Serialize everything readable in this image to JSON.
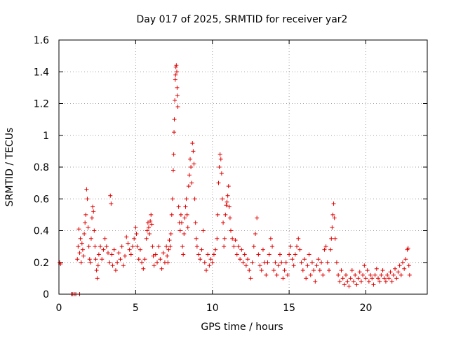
{
  "chart_data": {
    "type": "scatter",
    "title": "Day 017 of 2025, SRMTID for receiver yar2",
    "xlabel": "GPS time / hours",
    "ylabel": "SRMTID / TECUs",
    "xlim": [
      0,
      24
    ],
    "ylim": [
      0,
      1.6
    ],
    "xticks": [
      0,
      5,
      10,
      15,
      20
    ],
    "xtick_labels": [
      "0",
      "5",
      "10",
      "15",
      "20"
    ],
    "yticks": [
      0,
      0.2,
      0.4,
      0.6,
      0.8,
      1.0,
      1.2,
      1.4,
      1.6
    ],
    "ytick_labels": [
      "0",
      "0.2",
      "0.4",
      "0.6",
      "0.8",
      "1",
      "1.2",
      "1.4",
      "1.6"
    ],
    "grid": true,
    "marker": "+",
    "color": "#e00000",
    "series": [
      {
        "name": "yar2",
        "points": [
          [
            0.05,
            0.2
          ],
          [
            0.1,
            0.19
          ],
          [
            0.8,
            0.0
          ],
          [
            0.9,
            0.0
          ],
          [
            1.0,
            0.0
          ],
          [
            1.1,
            0.0
          ],
          [
            1.35,
            0.0
          ],
          [
            1.2,
            0.22
          ],
          [
            1.25,
            0.3
          ],
          [
            1.3,
            0.41
          ],
          [
            1.35,
            0.26
          ],
          [
            1.4,
            0.35
          ],
          [
            1.45,
            0.2
          ],
          [
            1.5,
            0.32
          ],
          [
            1.55,
            0.28
          ],
          [
            1.6,
            0.24
          ],
          [
            1.65,
            0.38
          ],
          [
            1.7,
            0.45
          ],
          [
            1.75,
            0.5
          ],
          [
            1.8,
            0.66
          ],
          [
            1.85,
            0.6
          ],
          [
            1.9,
            0.42
          ],
          [
            1.95,
            0.3
          ],
          [
            2.0,
            0.22
          ],
          [
            2.05,
            0.2
          ],
          [
            2.1,
            0.35
          ],
          [
            2.15,
            0.48
          ],
          [
            2.2,
            0.55
          ],
          [
            2.25,
            0.52
          ],
          [
            2.3,
            0.4
          ],
          [
            2.35,
            0.3
          ],
          [
            2.4,
            0.22
          ],
          [
            2.45,
            0.15
          ],
          [
            2.5,
            0.1
          ],
          [
            2.55,
            0.18
          ],
          [
            2.6,
            0.25
          ],
          [
            2.7,
            0.3
          ],
          [
            2.8,
            0.22
          ],
          [
            2.9,
            0.28
          ],
          [
            3.0,
            0.35
          ],
          [
            3.1,
            0.3
          ],
          [
            3.2,
            0.26
          ],
          [
            3.3,
            0.2
          ],
          [
            3.35,
            0.62
          ],
          [
            3.4,
            0.57
          ],
          [
            3.45,
            0.25
          ],
          [
            3.5,
            0.18
          ],
          [
            3.6,
            0.28
          ],
          [
            3.7,
            0.15
          ],
          [
            3.8,
            0.2
          ],
          [
            3.9,
            0.26
          ],
          [
            4.0,
            0.22
          ],
          [
            4.1,
            0.3
          ],
          [
            4.2,
            0.18
          ],
          [
            4.3,
            0.24
          ],
          [
            4.4,
            0.36
          ],
          [
            4.5,
            0.32
          ],
          [
            4.6,
            0.28
          ],
          [
            4.7,
            0.25
          ],
          [
            4.8,
            0.3
          ],
          [
            4.9,
            0.35
          ],
          [
            5.0,
            0.42
          ],
          [
            5.05,
            0.38
          ],
          [
            5.1,
            0.3
          ],
          [
            5.2,
            0.22
          ],
          [
            5.3,
            0.28
          ],
          [
            5.4,
            0.2
          ],
          [
            5.5,
            0.16
          ],
          [
            5.6,
            0.22
          ],
          [
            5.7,
            0.35
          ],
          [
            5.75,
            0.4
          ],
          [
            5.8,
            0.45
          ],
          [
            5.85,
            0.42
          ],
          [
            5.9,
            0.38
          ],
          [
            5.95,
            0.46
          ],
          [
            6.0,
            0.5
          ],
          [
            6.05,
            0.44
          ],
          [
            6.1,
            0.3
          ],
          [
            6.15,
            0.24
          ],
          [
            6.2,
            0.18
          ],
          [
            6.3,
            0.25
          ],
          [
            6.4,
            0.2
          ],
          [
            6.5,
            0.3
          ],
          [
            6.6,
            0.22
          ],
          [
            6.7,
            0.16
          ],
          [
            6.8,
            0.26
          ],
          [
            6.9,
            0.2
          ],
          [
            7.0,
            0.3
          ],
          [
            7.05,
            0.24
          ],
          [
            7.1,
            0.2
          ],
          [
            7.15,
            0.28
          ],
          [
            7.2,
            0.34
          ],
          [
            7.25,
            0.3
          ],
          [
            7.3,
            0.38
          ],
          [
            7.35,
            0.5
          ],
          [
            7.4,
            0.6
          ],
          [
            7.45,
            0.78
          ],
          [
            7.48,
            0.88
          ],
          [
            7.5,
            1.02
          ],
          [
            7.52,
            1.1
          ],
          [
            7.55,
            1.22
          ],
          [
            7.58,
            1.35
          ],
          [
            7.6,
            1.38
          ],
          [
            7.62,
            1.43
          ],
          [
            7.65,
            1.44
          ],
          [
            7.68,
            1.4
          ],
          [
            7.7,
            1.3
          ],
          [
            7.72,
            1.25
          ],
          [
            7.75,
            1.18
          ],
          [
            7.8,
            0.55
          ],
          [
            7.85,
            0.45
          ],
          [
            7.9,
            0.4
          ],
          [
            7.95,
            0.5
          ],
          [
            8.0,
            0.45
          ],
          [
            8.05,
            0.3
          ],
          [
            8.1,
            0.25
          ],
          [
            8.15,
            0.38
          ],
          [
            8.2,
            0.48
          ],
          [
            8.25,
            0.55
          ],
          [
            8.3,
            0.6
          ],
          [
            8.35,
            0.5
          ],
          [
            8.4,
            0.42
          ],
          [
            8.45,
            0.68
          ],
          [
            8.5,
            0.75
          ],
          [
            8.55,
            0.85
          ],
          [
            8.6,
            0.8
          ],
          [
            8.65,
            0.7
          ],
          [
            8.7,
            0.95
          ],
          [
            8.75,
            0.9
          ],
          [
            8.8,
            0.82
          ],
          [
            8.85,
            0.6
          ],
          [
            8.9,
            0.45
          ],
          [
            8.95,
            0.35
          ],
          [
            9.0,
            0.3
          ],
          [
            9.1,
            0.25
          ],
          [
            9.2,
            0.22
          ],
          [
            9.3,
            0.28
          ],
          [
            9.4,
            0.4
          ],
          [
            9.5,
            0.2
          ],
          [
            9.6,
            0.15
          ],
          [
            9.7,
            0.25
          ],
          [
            9.8,
            0.18
          ],
          [
            9.9,
            0.22
          ],
          [
            10.0,
            0.2
          ],
          [
            10.1,
            0.25
          ],
          [
            10.2,
            0.28
          ],
          [
            10.3,
            0.35
          ],
          [
            10.35,
            0.5
          ],
          [
            10.4,
            0.7
          ],
          [
            10.45,
            0.8
          ],
          [
            10.5,
            0.88
          ],
          [
            10.55,
            0.85
          ],
          [
            10.6,
            0.76
          ],
          [
            10.65,
            0.6
          ],
          [
            10.7,
            0.45
          ],
          [
            10.75,
            0.3
          ],
          [
            10.8,
            0.35
          ],
          [
            10.85,
            0.5
          ],
          [
            10.9,
            0.56
          ],
          [
            10.95,
            0.58
          ],
          [
            11.0,
            0.62
          ],
          [
            11.05,
            0.68
          ],
          [
            11.1,
            0.55
          ],
          [
            11.15,
            0.48
          ],
          [
            11.2,
            0.4
          ],
          [
            11.3,
            0.35
          ],
          [
            11.4,
            0.3
          ],
          [
            11.5,
            0.34
          ],
          [
            11.6,
            0.25
          ],
          [
            11.7,
            0.3
          ],
          [
            11.8,
            0.22
          ],
          [
            11.9,
            0.28
          ],
          [
            12.0,
            0.2
          ],
          [
            12.1,
            0.25
          ],
          [
            12.2,
            0.18
          ],
          [
            12.3,
            0.22
          ],
          [
            12.4,
            0.15
          ],
          [
            12.5,
            0.1
          ],
          [
            12.6,
            0.2
          ],
          [
            12.7,
            0.3
          ],
          [
            12.8,
            0.38
          ],
          [
            12.9,
            0.48
          ],
          [
            13.0,
            0.25
          ],
          [
            13.1,
            0.18
          ],
          [
            13.2,
            0.15
          ],
          [
            13.3,
            0.28
          ],
          [
            13.4,
            0.2
          ],
          [
            13.5,
            0.12
          ],
          [
            13.6,
            0.2
          ],
          [
            13.7,
            0.25
          ],
          [
            13.8,
            0.35
          ],
          [
            13.9,
            0.3
          ],
          [
            14.0,
            0.15
          ],
          [
            14.1,
            0.2
          ],
          [
            14.2,
            0.12
          ],
          [
            14.3,
            0.18
          ],
          [
            14.4,
            0.25
          ],
          [
            14.5,
            0.2
          ],
          [
            14.6,
            0.1
          ],
          [
            14.7,
            0.15
          ],
          [
            14.8,
            0.2
          ],
          [
            14.9,
            0.12
          ],
          [
            15.0,
            0.25
          ],
          [
            15.1,
            0.3
          ],
          [
            15.2,
            0.22
          ],
          [
            15.3,
            0.18
          ],
          [
            15.4,
            0.25
          ],
          [
            15.5,
            0.3
          ],
          [
            15.6,
            0.35
          ],
          [
            15.7,
            0.28
          ],
          [
            15.8,
            0.2
          ],
          [
            15.9,
            0.15
          ],
          [
            16.0,
            0.22
          ],
          [
            16.1,
            0.1
          ],
          [
            16.2,
            0.18
          ],
          [
            16.3,
            0.25
          ],
          [
            16.4,
            0.12
          ],
          [
            16.5,
            0.2
          ],
          [
            16.6,
            0.15
          ],
          [
            16.7,
            0.08
          ],
          [
            16.8,
            0.18
          ],
          [
            16.9,
            0.22
          ],
          [
            17.0,
            0.15
          ],
          [
            17.1,
            0.2
          ],
          [
            17.2,
            0.12
          ],
          [
            17.3,
            0.28
          ],
          [
            17.4,
            0.3
          ],
          [
            17.5,
            0.2
          ],
          [
            17.6,
            0.15
          ],
          [
            17.7,
            0.28
          ],
          [
            17.75,
            0.35
          ],
          [
            17.8,
            0.42
          ],
          [
            17.85,
            0.5
          ],
          [
            17.9,
            0.57
          ],
          [
            17.95,
            0.48
          ],
          [
            18.0,
            0.35
          ],
          [
            18.1,
            0.2
          ],
          [
            18.2,
            0.12
          ],
          [
            18.3,
            0.08
          ],
          [
            18.4,
            0.15
          ],
          [
            18.5,
            0.1
          ],
          [
            18.6,
            0.06
          ],
          [
            18.7,
            0.12
          ],
          [
            18.8,
            0.08
          ],
          [
            18.9,
            0.05
          ],
          [
            19.0,
            0.1
          ],
          [
            19.1,
            0.15
          ],
          [
            19.2,
            0.08
          ],
          [
            19.3,
            0.12
          ],
          [
            19.4,
            0.06
          ],
          [
            19.5,
            0.1
          ],
          [
            19.6,
            0.14
          ],
          [
            19.7,
            0.08
          ],
          [
            19.8,
            0.12
          ],
          [
            19.9,
            0.18
          ],
          [
            20.0,
            0.1
          ],
          [
            20.1,
            0.15
          ],
          [
            20.2,
            0.08
          ],
          [
            20.3,
            0.12
          ],
          [
            20.4,
            0.1
          ],
          [
            20.5,
            0.06
          ],
          [
            20.6,
            0.12
          ],
          [
            20.7,
            0.16
          ],
          [
            20.8,
            0.1
          ],
          [
            20.9,
            0.08
          ],
          [
            21.0,
            0.12
          ],
          [
            21.1,
            0.15
          ],
          [
            21.2,
            0.1
          ],
          [
            21.3,
            0.08
          ],
          [
            21.4,
            0.12
          ],
          [
            21.5,
            0.1
          ],
          [
            21.6,
            0.14
          ],
          [
            21.7,
            0.08
          ],
          [
            21.8,
            0.12
          ],
          [
            21.9,
            0.16
          ],
          [
            22.0,
            0.1
          ],
          [
            22.1,
            0.14
          ],
          [
            22.2,
            0.18
          ],
          [
            22.3,
            0.12
          ],
          [
            22.4,
            0.2
          ],
          [
            22.5,
            0.16
          ],
          [
            22.6,
            0.22
          ],
          [
            22.7,
            0.28
          ],
          [
            22.75,
            0.29
          ],
          [
            22.8,
            0.18
          ],
          [
            22.85,
            0.12
          ]
        ]
      }
    ]
  }
}
